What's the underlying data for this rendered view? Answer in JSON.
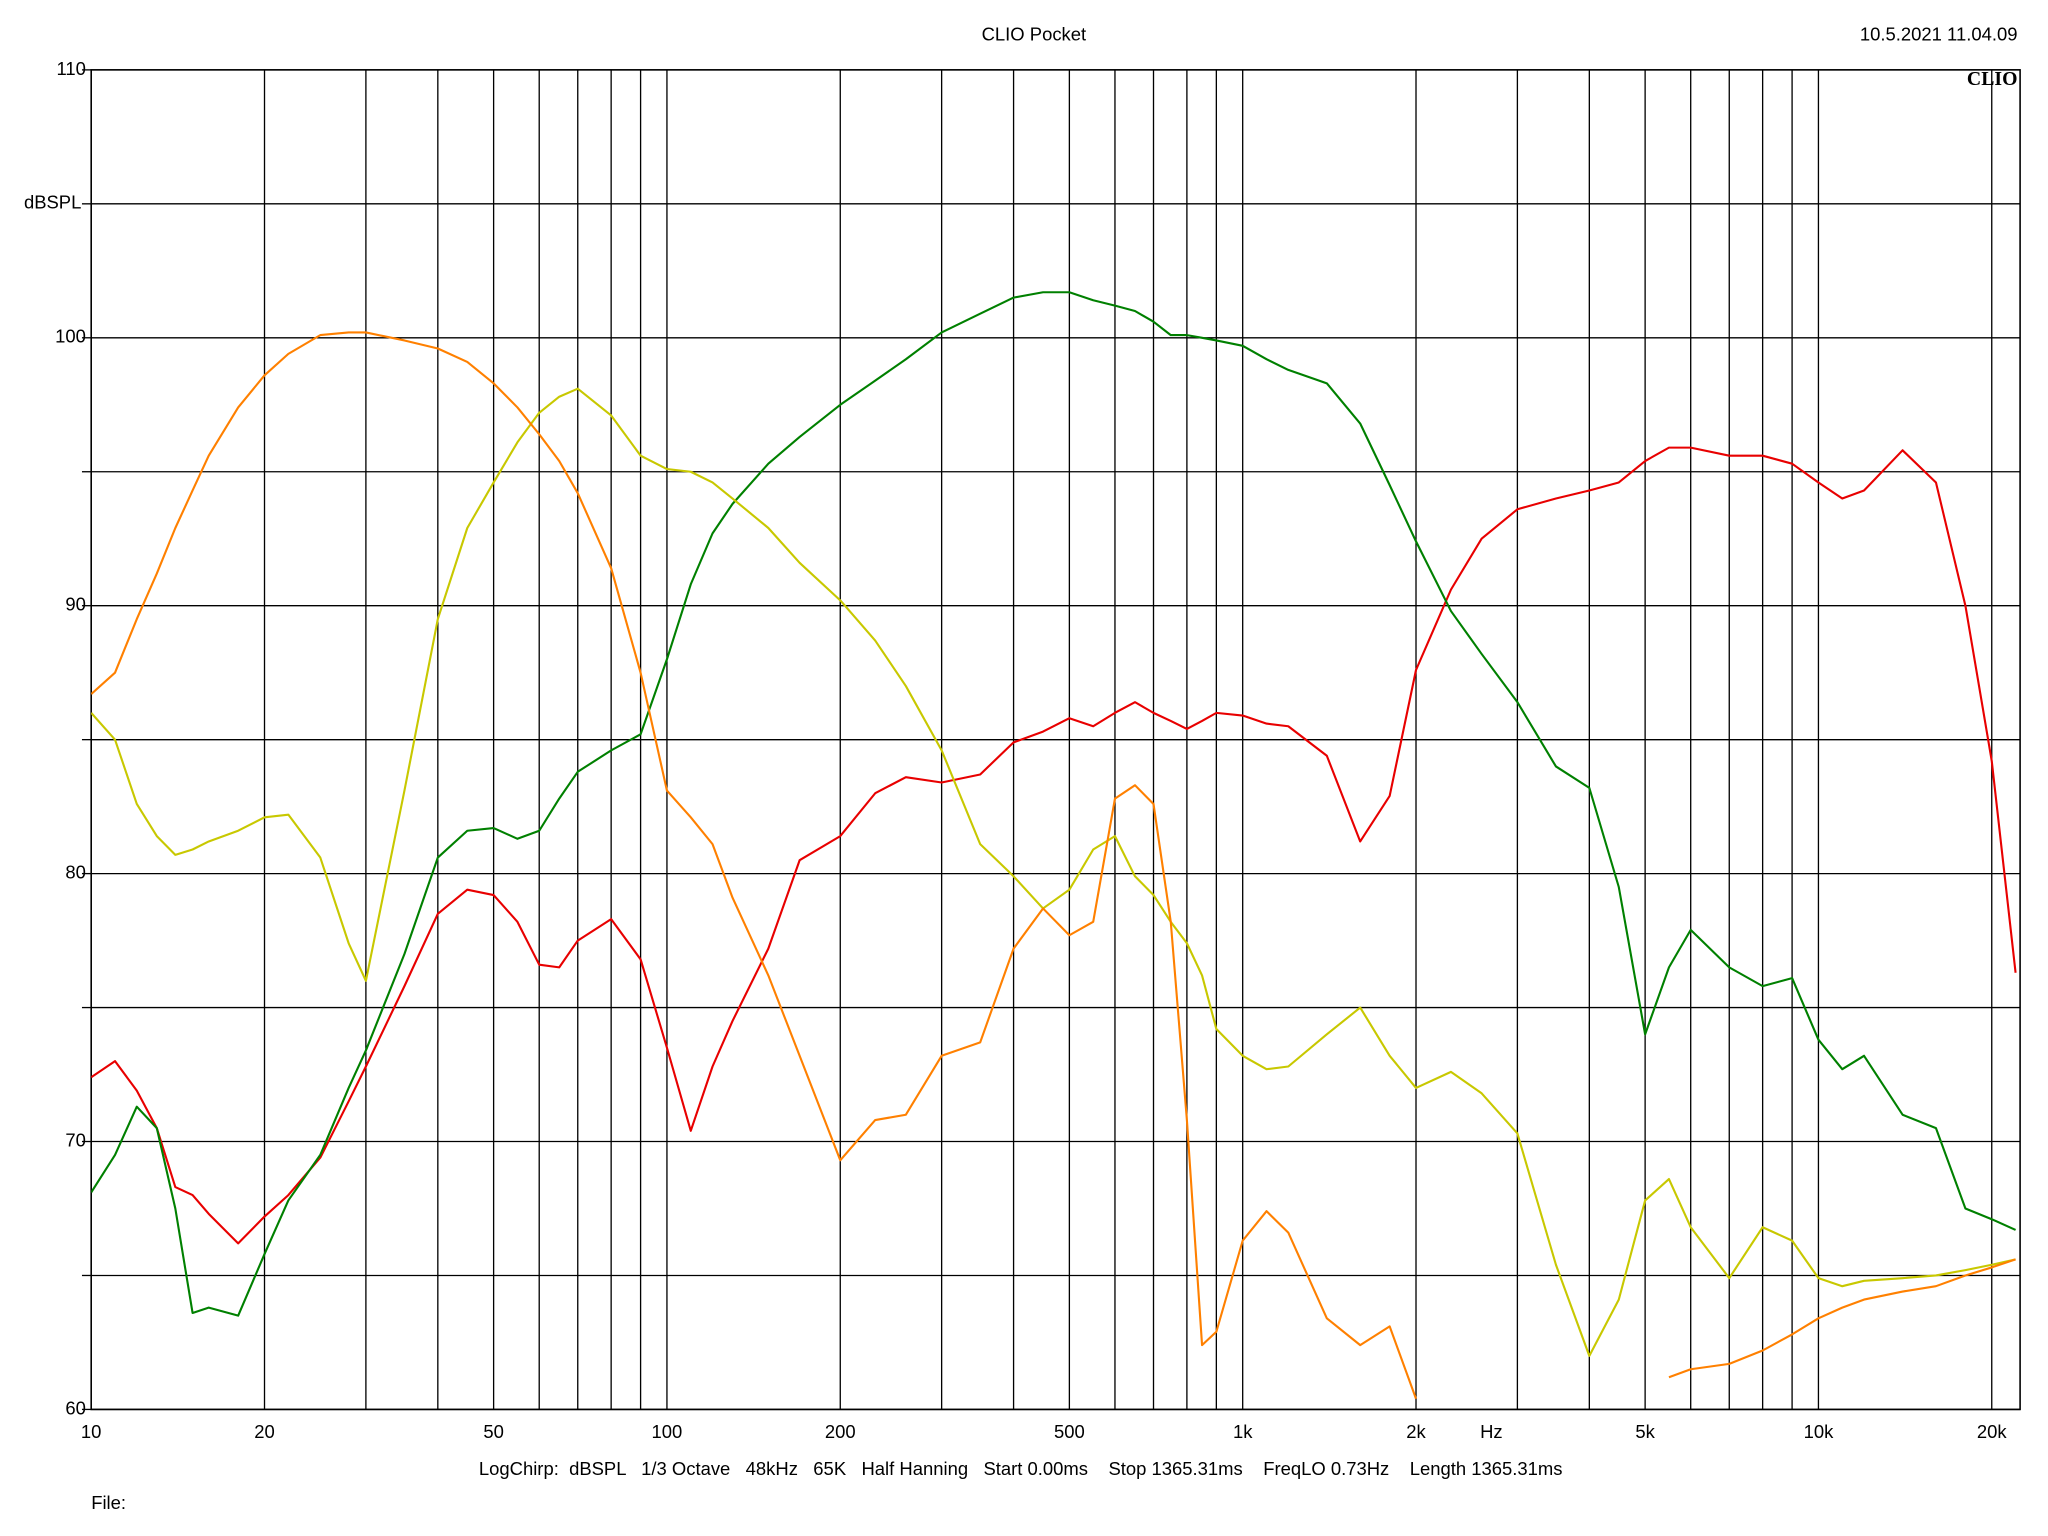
{
  "chart_data": {
    "type": "line",
    "title": "CLIO Pocket",
    "timestamp": "10.5.2021 11.04.09",
    "watermark": "CLIO",
    "y_label": "dBSPL",
    "x_label": "Hz",
    "footer": "LogChirp:  dBSPL   1/3 Octave   48kHz   65K   Half Hanning   Start 0.00ms    Stop 1365.31ms    FreqLO 0.73Hz    Length 1365.31ms",
    "file_label": "File:",
    "x_scale": "log",
    "xlim": [
      10,
      22400
    ],
    "ylim": [
      60,
      110
    ],
    "grid": true,
    "xticks": [
      10,
      20,
      50,
      100,
      200,
      500,
      {
        "value": 1000,
        "label": "1k"
      },
      {
        "value": 2000,
        "label": "2k"
      },
      {
        "value": 5000,
        "label": "5k"
      },
      {
        "value": 10000,
        "label": "10k"
      },
      {
        "value": 20000,
        "label": "20k"
      }
    ],
    "xminor": [
      30,
      40,
      60,
      70,
      80,
      90,
      300,
      400,
      600,
      700,
      800,
      900,
      3000,
      4000,
      6000,
      7000,
      8000,
      9000
    ],
    "yticks": [
      60,
      70,
      80,
      90,
      100,
      110
    ],
    "yminor": [
      65,
      75,
      85,
      95,
      105
    ],
    "x": [
      10,
      11,
      12,
      13,
      14,
      15,
      16,
      18,
      20,
      22,
      25,
      28,
      30,
      35,
      40,
      45,
      50,
      55,
      60,
      65,
      70,
      80,
      90,
      100,
      110,
      120,
      130,
      150,
      170,
      200,
      230,
      260,
      300,
      350,
      400,
      450,
      500,
      550,
      600,
      650,
      700,
      750,
      800,
      850,
      900,
      1000,
      1100,
      1200,
      1400,
      1600,
      1800,
      2000,
      2300,
      2600,
      3000,
      3500,
      4000,
      4500,
      5000,
      5500,
      6000,
      7000,
      8000,
      9000,
      10000,
      11000,
      12000,
      14000,
      16000,
      18000,
      20000,
      22000
    ],
    "series": [
      {
        "color": "#e80000",
        "values": [
          72.4,
          73.0,
          71.9,
          70.5,
          68.3,
          68.0,
          67.3,
          66.2,
          67.2,
          68.0,
          69.4,
          71.5,
          72.8,
          75.8,
          78.5,
          79.4,
          79.2,
          78.2,
          76.6,
          76.5,
          77.5,
          78.3,
          76.8,
          73.5,
          70.4,
          72.8,
          74.5,
          77.2,
          80.5,
          81.4,
          83.0,
          83.6,
          83.4,
          83.7,
          84.9,
          85.3,
          85.8,
          85.5,
          86.0,
          86.4,
          86.0,
          85.7,
          85.4,
          85.7,
          86.0,
          85.9,
          85.6,
          85.5,
          84.4,
          81.2,
          82.9,
          87.6,
          90.6,
          92.5,
          93.6,
          94.0,
          94.3,
          94.6,
          95.4,
          95.9,
          95.9,
          95.6,
          95.6,
          95.3,
          94.6,
          94.0,
          94.3,
          95.8,
          94.6,
          90.0,
          84.2,
          76.3
        ]
      },
      {
        "color": "#008000",
        "values": [
          68.1,
          69.5,
          71.3,
          70.5,
          67.5,
          63.6,
          63.8,
          63.5,
          65.8,
          67.8,
          69.5,
          72.0,
          73.4,
          77.0,
          80.6,
          81.6,
          81.7,
          81.3,
          81.6,
          82.8,
          83.8,
          84.6,
          85.2,
          88.0,
          90.8,
          92.7,
          93.8,
          95.3,
          96.3,
          97.5,
          98.4,
          99.2,
          100.2,
          100.9,
          101.5,
          101.7,
          101.7,
          101.4,
          101.2,
          101.0,
          100.6,
          100.1,
          100.1,
          100.0,
          99.9,
          99.7,
          99.2,
          98.8,
          98.3,
          96.8,
          94.5,
          92.4,
          89.8,
          88.2,
          86.4,
          84.0,
          83.2,
          79.5,
          74.0,
          76.5,
          77.9,
          76.5,
          75.8,
          76.1,
          73.8,
          72.7,
          73.2,
          71.0,
          70.5,
          67.5,
          67.1,
          66.7
        ]
      },
      {
        "color": "#c8c800",
        "values": [
          86.0,
          85.0,
          82.6,
          81.4,
          80.7,
          80.9,
          81.2,
          81.6,
          82.1,
          82.2,
          80.6,
          77.4,
          76.0,
          83.1,
          89.5,
          92.9,
          94.6,
          96.1,
          97.2,
          97.8,
          98.1,
          97.1,
          95.6,
          95.1,
          95.0,
          94.6,
          94.0,
          92.9,
          91.6,
          90.2,
          88.7,
          87.0,
          84.6,
          81.1,
          79.9,
          78.7,
          79.4,
          80.9,
          81.4,
          79.9,
          79.2,
          78.2,
          77.4,
          76.2,
          74.2,
          73.2,
          72.7,
          72.8,
          74.0,
          75.0,
          73.2,
          72.0,
          72.6,
          71.8,
          70.3,
          65.4,
          62.0,
          64.1,
          67.8,
          68.6,
          66.8,
          64.9,
          66.8,
          66.3,
          64.9,
          64.6,
          64.8,
          64.9,
          65.0,
          65.2,
          65.4,
          65.6
        ]
      },
      {
        "color": "#ff8000",
        "values": [
          86.7,
          87.5,
          89.5,
          91.2,
          92.9,
          94.3,
          95.6,
          97.4,
          98.6,
          99.4,
          100.1,
          100.2,
          100.2,
          99.9,
          99.6,
          99.1,
          98.3,
          97.4,
          96.4,
          95.4,
          94.2,
          91.4,
          87.5,
          83.1,
          82.1,
          81.1,
          79.1,
          76.2,
          73.2,
          69.3,
          70.8,
          71.0,
          73.2,
          73.7,
          77.2,
          78.7,
          77.7,
          78.2,
          82.8,
          83.3,
          82.6,
          78.2,
          70.8,
          62.4,
          62.9,
          66.3,
          67.4,
          66.6,
          63.4,
          62.4,
          63.1,
          60.4,
          null,
          null,
          null,
          null,
          null,
          null,
          null,
          61.2,
          61.5,
          61.7,
          62.2,
          62.8,
          63.4,
          63.8,
          64.1,
          64.4,
          64.6,
          65.0,
          65.3,
          65.6
        ]
      }
    ]
  }
}
